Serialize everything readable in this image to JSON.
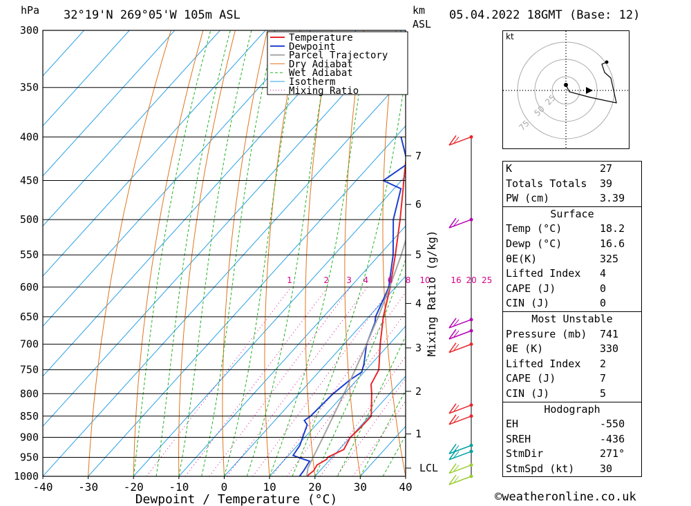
{
  "header": {
    "location": "32°19'N  269°05'W  105m  ASL",
    "datetime": "05.04.2022  18GMT  (Base: 12)",
    "hpa_label": "hPa",
    "km_label": "km",
    "asl_label": "ASL"
  },
  "chart_data": {
    "type": "skew-t",
    "xlabel": "Dewpoint / Temperature (°C)",
    "ylabel_right": "Mixing Ratio (g/kg)",
    "x_ticks": [
      -40,
      -30,
      -20,
      -10,
      0,
      10,
      20,
      30,
      40
    ],
    "pressure_levels": [
      300,
      350,
      400,
      450,
      500,
      550,
      600,
      650,
      700,
      750,
      800,
      850,
      900,
      950,
      1000
    ],
    "km_ticks": [
      {
        "label": "7",
        "p": 421
      },
      {
        "label": "6",
        "p": 480
      },
      {
        "label": "5",
        "p": 550
      },
      {
        "label": "4",
        "p": 627
      },
      {
        "label": "3",
        "p": 707
      },
      {
        "label": "2",
        "p": 795
      },
      {
        "label": "1",
        "p": 892
      },
      {
        "label": "LCL",
        "p": 978
      }
    ],
    "mixing_ratio_labels": [
      "1",
      "2",
      "3",
      "4",
      "6",
      "8",
      "10",
      "16",
      "20",
      "25"
    ],
    "legend": [
      "Temperature",
      "Dewpoint",
      "Parcel Trajectory",
      "Dry Adiabat",
      "Wet Adiabat",
      "Isotherm",
      "Mixing Ratio"
    ],
    "series": [
      {
        "name": "Temperature",
        "color": "#e8262a",
        "points": [
          [
            1000,
            18.2
          ],
          [
            985,
            18.6
          ],
          [
            970,
            18.2
          ],
          [
            955,
            19.2
          ],
          [
            950,
            19.0
          ],
          [
            930,
            21.0
          ],
          [
            900,
            20.0
          ],
          [
            880,
            20.3
          ],
          [
            850,
            20.4
          ],
          [
            800,
            16.0
          ],
          [
            780,
            14.0
          ],
          [
            770,
            13.6
          ],
          [
            750,
            12.8
          ],
          [
            700,
            8.0
          ],
          [
            650,
            3.2
          ],
          [
            600,
            -1.2
          ],
          [
            550,
            -6.5
          ],
          [
            500,
            -12.5
          ],
          [
            460,
            -18.0
          ],
          [
            450,
            -19.5
          ],
          [
            400,
            -27.2
          ]
        ]
      },
      {
        "name": "Dewpoint",
        "color": "#1d3fcf",
        "points": [
          [
            1000,
            16.6
          ],
          [
            985,
            16.4
          ],
          [
            960,
            15.8
          ],
          [
            950,
            12.5
          ],
          [
            945,
            11.0
          ],
          [
            920,
            10.5
          ],
          [
            900,
            9.5
          ],
          [
            870,
            8.0
          ],
          [
            860,
            6.5
          ],
          [
            850,
            7.0
          ],
          [
            800,
            7.5
          ],
          [
            770,
            8.5
          ],
          [
            755,
            9.5
          ],
          [
            740,
            8.5
          ],
          [
            700,
            5.0
          ],
          [
            660,
            2.5
          ],
          [
            650,
            1.5
          ],
          [
            600,
            -1.5
          ],
          [
            550,
            -7.0
          ],
          [
            500,
            -14.0
          ],
          [
            460,
            -18.5
          ],
          [
            450,
            -24.0
          ],
          [
            430,
            -22.0
          ],
          [
            400,
            -28.8
          ]
        ]
      },
      {
        "name": "Parcel Trajectory",
        "color": "#a6a6a6",
        "points": [
          [
            1000,
            18.2
          ],
          [
            978,
            16.8
          ],
          [
            950,
            15.8
          ],
          [
            900,
            14.0
          ],
          [
            850,
            12.0
          ],
          [
            800,
            9.9
          ],
          [
            750,
            7.6
          ],
          [
            700,
            5.0
          ],
          [
            650,
            2.1
          ],
          [
            600,
            -1.3
          ],
          [
            550,
            -5.2
          ],
          [
            500,
            -9.9
          ],
          [
            450,
            -15.6
          ],
          [
            400,
            -22.8
          ],
          [
            350,
            -31.5
          ],
          [
            300,
            -42.0
          ]
        ]
      }
    ],
    "wind_barbs": [
      {
        "p": 400,
        "color": "#e8262a"
      },
      {
        "p": 500,
        "color": "#b600b6"
      },
      {
        "p": 655,
        "color": "#b600b6"
      },
      {
        "p": 675,
        "color": "#b600b6"
      },
      {
        "p": 700,
        "color": "#e8262a"
      },
      {
        "p": 825,
        "color": "#e8262a"
      },
      {
        "p": 850,
        "color": "#e8262a"
      },
      {
        "p": 920,
        "color": "#00a0a0"
      },
      {
        "p": 935,
        "color": "#00a0a0"
      },
      {
        "p": 970,
        "color": "#9acd32"
      },
      {
        "p": 1000,
        "color": "#9acd32"
      }
    ],
    "x_range": [
      -40,
      40
    ],
    "p_range": [
      300,
      1000
    ]
  },
  "hodograph": {
    "unit_label": "kt",
    "ring_labels": [
      "25",
      "50",
      "75"
    ]
  },
  "indices": {
    "general": [
      {
        "label": "K",
        "value": "27"
      },
      {
        "label": "Totals Totals",
        "value": "39"
      },
      {
        "label": "PW (cm)",
        "value": "3.39"
      }
    ],
    "surface_title": "Surface",
    "surface": [
      {
        "label": "Temp (°C)",
        "value": "18.2"
      },
      {
        "label": "Dewp (°C)",
        "value": "16.6"
      },
      {
        "label": "θE(K)",
        "value": "325"
      },
      {
        "label": "Lifted Index",
        "value": "4"
      },
      {
        "label": "CAPE (J)",
        "value": "0"
      },
      {
        "label": "CIN (J)",
        "value": "0"
      }
    ],
    "mu_title": "Most Unstable",
    "mu": [
      {
        "label": "Pressure (mb)",
        "value": "741"
      },
      {
        "label": "θE (K)",
        "value": "330"
      },
      {
        "label": "Lifted Index",
        "value": "2"
      },
      {
        "label": "CAPE (J)",
        "value": "7"
      },
      {
        "label": "CIN (J)",
        "value": "5"
      }
    ],
    "hodo_title": "Hodograph",
    "hodo": [
      {
        "label": "EH",
        "value": "-550"
      },
      {
        "label": "SREH",
        "value": "-436"
      },
      {
        "label": "StmDir",
        "value": "271°"
      },
      {
        "label": "StmSpd (kt)",
        "value": "30"
      }
    ]
  },
  "copyright": "©weatheronline.co.uk",
  "colors": {
    "temperature": "#e8262a",
    "dewpoint": "#1d3fcf",
    "parcel": "#a6a6a6",
    "dry_adiabat": "#e0741c",
    "wet_adiabat": "#22b022",
    "isotherm": "#2aa0e6",
    "mixing_ratio": "#d6008a"
  }
}
